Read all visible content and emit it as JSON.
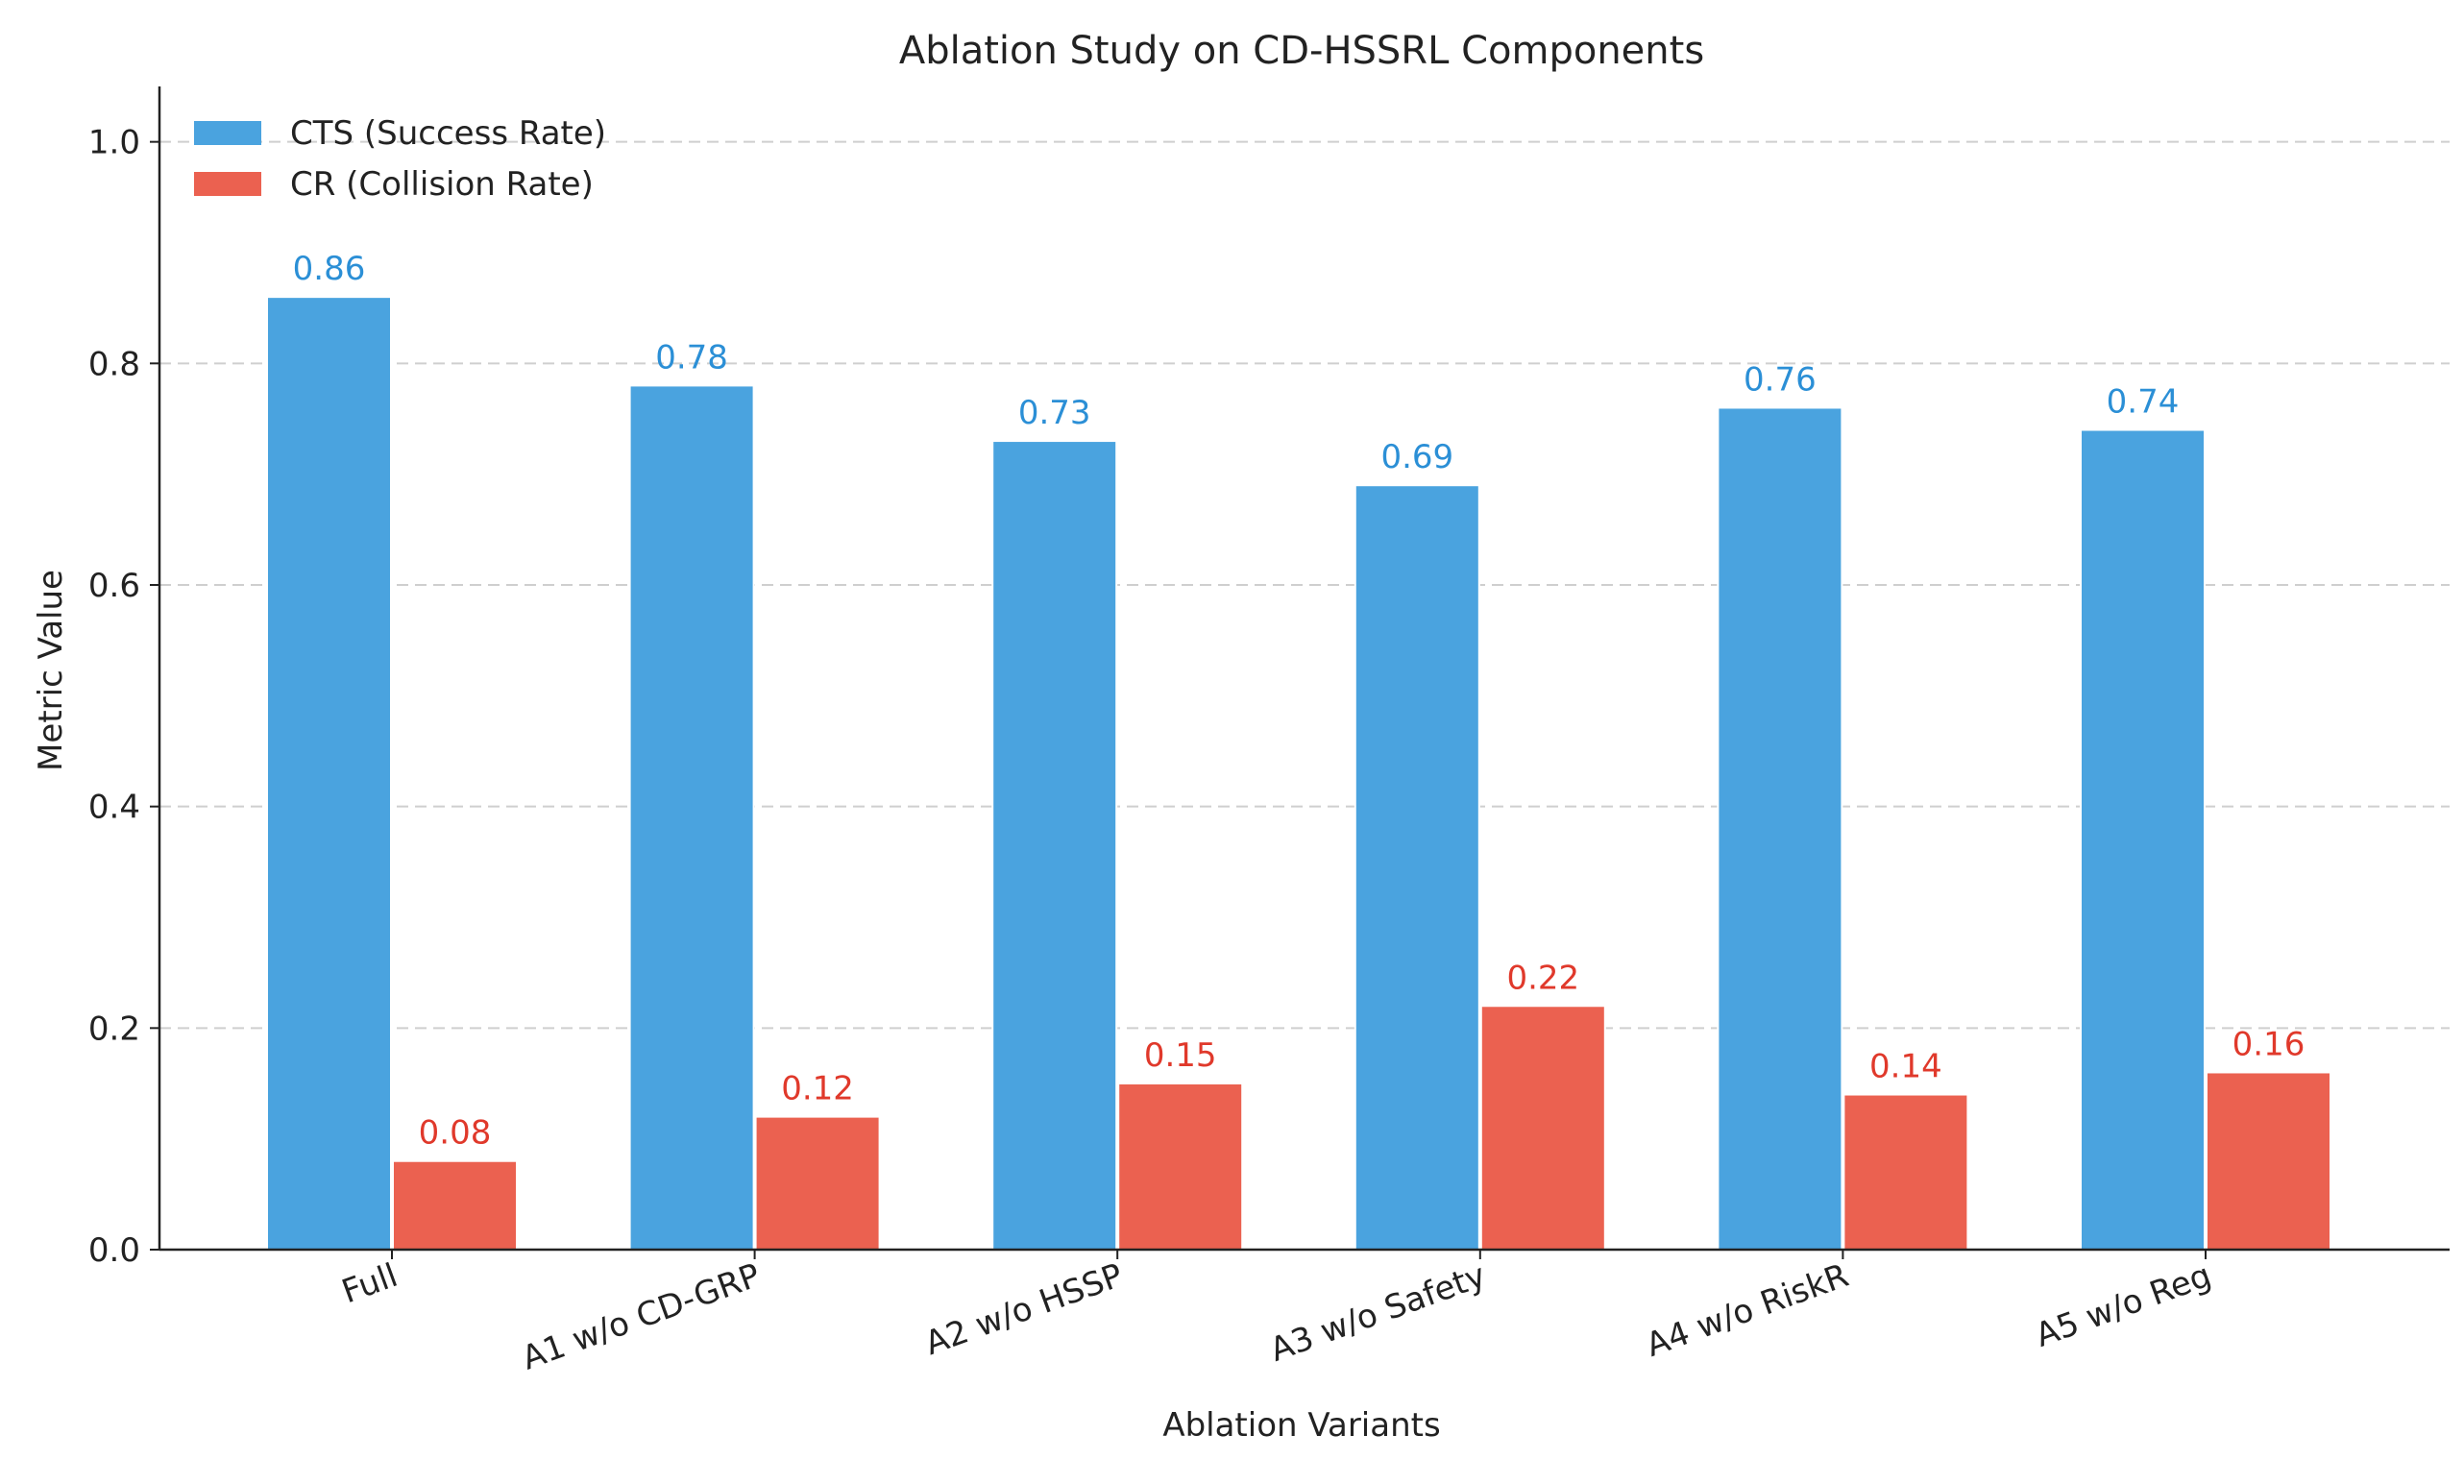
{
  "chart_data": {
    "type": "bar",
    "title": "Ablation Study on CD-HSSRL Components",
    "xlabel": "Ablation Variants",
    "ylabel": "Metric Value",
    "categories": [
      "Full",
      "A1 w/o CD-GRP",
      "A2 w/o HSSP",
      "A3 w/o Safety",
      "A4 w/o RiskR",
      "A5 w/o Reg"
    ],
    "series": [
      {
        "name": "CTS (Success Rate)",
        "color": "#4aa3df",
        "label_color": "#2b8fd6",
        "values": [
          0.86,
          0.78,
          0.73,
          0.69,
          0.76,
          0.74
        ],
        "labels": [
          "0.86",
          "0.78",
          "0.73",
          "0.69",
          "0.76",
          "0.74"
        ]
      },
      {
        "name": "CR (Collision Rate)",
        "color": "#eb6150",
        "label_color": "#e0392b",
        "values": [
          0.08,
          0.12,
          0.15,
          0.22,
          0.14,
          0.16
        ],
        "labels": [
          "0.08",
          "0.12",
          "0.15",
          "0.22",
          "0.14",
          "0.16"
        ]
      }
    ],
    "ylim": [
      0,
      1.05
    ],
    "yticks": [
      0.0,
      0.2,
      0.4,
      0.6,
      0.8,
      1.0
    ],
    "ytick_labels": [
      "0.0",
      "0.2",
      "0.4",
      "0.6",
      "0.8",
      "1.0"
    ],
    "grid": "horizontal dashed",
    "legend_position": "top-left"
  }
}
